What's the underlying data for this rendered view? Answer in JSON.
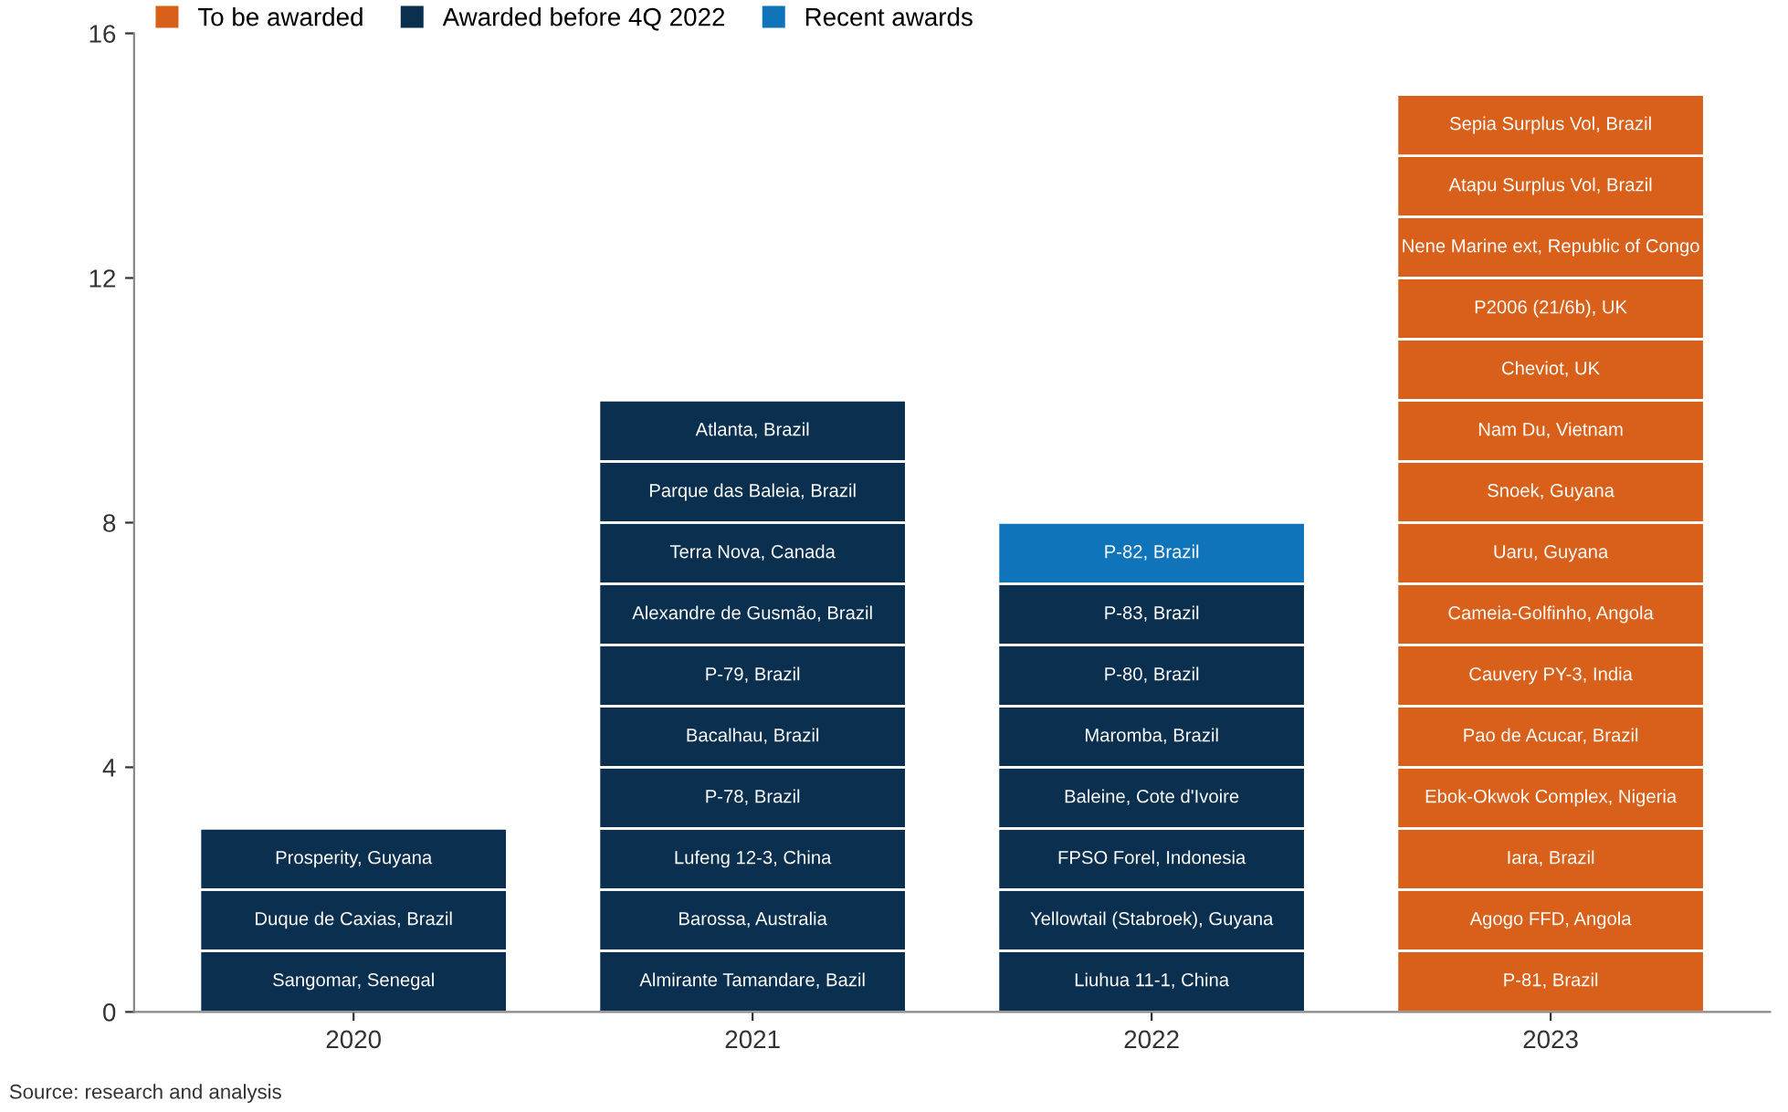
{
  "chart_data": {
    "type": "bar",
    "stacked": true,
    "categories": [
      "2020",
      "2021",
      "2022",
      "2023"
    ],
    "series": [
      {
        "name": "To be awarded",
        "color": "#d9601a",
        "values": [
          null,
          null,
          null,
          1
        ],
        "value_labels": [
          null,
          null,
          null,
          "P-81, Brazil"
        ]
      },
      {
        "name": "Awarded before 4Q 2022",
        "color": "#0b2f4e",
        "values": [
          1,
          1,
          1,
          null
        ],
        "value_labels": [
          "Sangomar, Senegal",
          "Almirante Tamandare, Bazil",
          "Liuhua 11-1, China",
          null
        ]
      },
      {
        "color": "#0b2f4e",
        "values": [
          1,
          1,
          1,
          null
        ],
        "value_labels": [
          "Duque de Caxias, Brazil",
          "Barossa, Australia",
          "Yellowtail (Stabroek), Guyana",
          null
        ]
      },
      {
        "color": "#0b2f4e",
        "values": [
          1,
          1,
          1,
          null
        ],
        "value_labels": [
          "Prosperity, Guyana",
          "Lufeng 12-3, China",
          "FPSO Forel, Indonesia",
          null
        ]
      },
      {
        "color": "#0b2f4e",
        "values": [
          null,
          1,
          1,
          null
        ],
        "value_labels": [
          null,
          "P-78, Brazil",
          "Baleine, Cote d'Ivoire",
          null
        ]
      },
      {
        "color": "#0b2f4e",
        "values": [
          null,
          1,
          1,
          null
        ],
        "value_labels": [
          null,
          "Bacalhau, Brazil",
          "Maromba, Brazil",
          null
        ]
      },
      {
        "color": "#0b2f4e",
        "values": [
          null,
          1,
          1,
          null
        ],
        "value_labels": [
          null,
          "P-79, Brazil",
          "P-80, Brazil",
          null
        ]
      },
      {
        "color": "#0b2f4e",
        "values": [
          null,
          1,
          1,
          null
        ],
        "value_labels": [
          null,
          "Alexandre de Gusmão, Brazil",
          "P-83, Brazil",
          null
        ]
      },
      {
        "color": "#0b2f4e",
        "values": [
          null,
          1,
          null,
          null
        ],
        "value_labels": [
          null,
          "Terra Nova, Canada",
          null,
          null
        ]
      },
      {
        "color": "#0b2f4e",
        "values": [
          null,
          1,
          null,
          null
        ],
        "value_labels": [
          null,
          "Parque das Baleia, Brazil",
          null,
          null
        ]
      },
      {
        "color": "#0b2f4e",
        "values": [
          null,
          1,
          null,
          null
        ],
        "value_labels": [
          null,
          "Atlanta, Brazil",
          null,
          null
        ]
      },
      {
        "name": "Recent awards",
        "color": "#1074bb",
        "values": [
          null,
          null,
          1,
          null
        ],
        "value_labels": [
          null,
          null,
          "P-82, Brazil",
          null
        ]
      },
      {
        "color": "#d9601a",
        "values": [
          null,
          null,
          null,
          1
        ],
        "value_labels": [
          null,
          null,
          null,
          "Agogo FFD, Angola"
        ]
      },
      {
        "color": "#d9601a",
        "values": [
          null,
          null,
          null,
          1
        ],
        "value_labels": [
          null,
          null,
          null,
          "Iara, Brazil"
        ]
      },
      {
        "color": "#d9601a",
        "values": [
          null,
          null,
          null,
          1
        ],
        "value_labels": [
          null,
          null,
          null,
          "Ebok-Okwok Complex, Nigeria"
        ]
      },
      {
        "color": "#d9601a",
        "values": [
          null,
          null,
          null,
          1
        ],
        "value_labels": [
          null,
          null,
          null,
          "Pao de Acucar, Brazil"
        ]
      },
      {
        "color": "#d9601a",
        "values": [
          null,
          null,
          null,
          1
        ],
        "value_labels": [
          null,
          null,
          null,
          "Cauvery PY-3, India"
        ]
      },
      {
        "color": "#d9601a",
        "values": [
          null,
          null,
          null,
          1
        ],
        "value_labels": [
          null,
          null,
          null,
          "Cameia-Golfinho, Angola"
        ]
      },
      {
        "color": "#d9601a",
        "values": [
          null,
          null,
          null,
          1
        ],
        "value_labels": [
          null,
          null,
          null,
          "Uaru, Guyana"
        ]
      },
      {
        "color": "#d9601a",
        "values": [
          null,
          null,
          null,
          1
        ],
        "value_labels": [
          null,
          null,
          null,
          "Snoek, Guyana"
        ]
      },
      {
        "color": "#d9601a",
        "values": [
          null,
          null,
          null,
          1
        ],
        "value_labels": [
          null,
          null,
          null,
          "Nam Du, Vietnam"
        ]
      },
      {
        "color": "#d9601a",
        "values": [
          null,
          null,
          null,
          1
        ],
        "value_labels": [
          null,
          null,
          null,
          "Cheviot, UK"
        ]
      },
      {
        "color": "#d9601a",
        "values": [
          null,
          null,
          null,
          1
        ],
        "value_labels": [
          null,
          null,
          null,
          "P2006 (21/6b), UK"
        ]
      },
      {
        "color": "#d9601a",
        "values": [
          null,
          null,
          null,
          1
        ],
        "value_labels": [
          null,
          null,
          null,
          "Nene Marine ext, Republic of Congo"
        ]
      },
      {
        "color": "#d9601a",
        "values": [
          null,
          null,
          null,
          1
        ],
        "value_labels": [
          null,
          null,
          null,
          "Atapu Surplus Vol, Brazil"
        ]
      },
      {
        "color": "#d9601a",
        "values": [
          null,
          null,
          null,
          1
        ],
        "value_labels": [
          null,
          null,
          null,
          "Sepia Surplus Vol, Brazil"
        ]
      }
    ],
    "ylim": [
      0,
      16
    ],
    "yticks": [
      0,
      4,
      8,
      12,
      16
    ],
    "grid": false,
    "legend": "top left",
    "annotations": [
      "Source: research and analysis"
    ]
  }
}
